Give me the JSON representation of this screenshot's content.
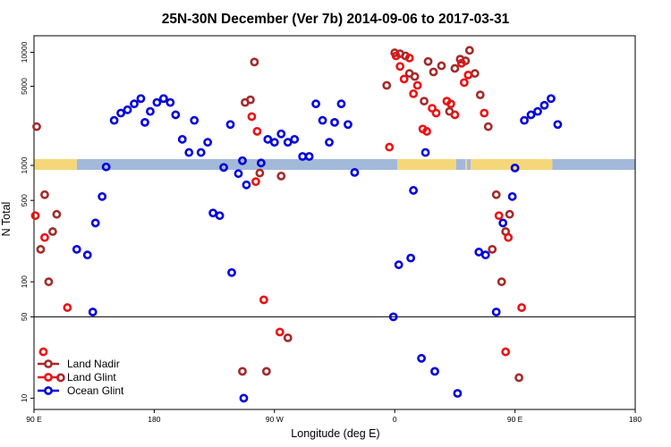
{
  "chart_data": {
    "type": "scatter",
    "title": "25N-30N December (Ver 7b)   2014-09-06 to 2017-03-31",
    "xlabel": "Longitude (deg E)",
    "ylabel": "N Total",
    "x_ticks": [
      {
        "value": 90,
        "label": "90 E"
      },
      {
        "value": 180,
        "label": "180"
      },
      {
        "value": 270,
        "label": "90 W"
      },
      {
        "value": 360,
        "label": "0"
      },
      {
        "value": 450,
        "label": "90 E"
      },
      {
        "value": 540,
        "label": "180"
      }
    ],
    "xlim": [
      90,
      540
    ],
    "y_scale": "log",
    "y_ticks": [
      10,
      50,
      100,
      500,
      1000,
      5000,
      10000
    ],
    "upper_panel": {
      "ylim": [
        1000,
        14000
      ],
      "ticks": [
        1000,
        5000,
        10000
      ]
    },
    "lower_panel": {
      "ylim": [
        8,
        1000
      ],
      "ticks": [
        10,
        50,
        100,
        500,
        1000
      ]
    },
    "reference_line": 50,
    "legend_position": "bottom-left",
    "surface_band_colors": {
      "land": "#f5d77a",
      "ocean": "#a3b9d9"
    },
    "surface_band": [
      {
        "from": 90,
        "to": 122,
        "surface": "land"
      },
      {
        "from": 122,
        "to": 362,
        "surface": "ocean"
      },
      {
        "from": 362,
        "to": 406,
        "surface": "land"
      },
      {
        "from": 406,
        "to": 413,
        "surface": "ocean"
      },
      {
        "from": 413,
        "to": 414,
        "surface": "land"
      },
      {
        "from": 414,
        "to": 417,
        "surface": "ocean"
      },
      {
        "from": 417,
        "to": 478,
        "surface": "land"
      },
      {
        "from": 478,
        "to": 540,
        "surface": "ocean"
      }
    ],
    "series": [
      {
        "name": "Land Nadir",
        "color": "#a52a2a",
        "points": [
          [
            92,
            2200
          ],
          [
            95,
            190
          ],
          [
            98,
            560
          ],
          [
            101,
            100
          ],
          [
            104,
            270
          ],
          [
            107,
            380
          ],
          [
            110,
            15
          ],
          [
            246,
            17
          ],
          [
            248,
            3600
          ],
          [
            252,
            3800
          ],
          [
            255,
            8200
          ],
          [
            259,
            860
          ],
          [
            264,
            17
          ],
          [
            275,
            810
          ],
          [
            280,
            33
          ],
          [
            354,
            5100
          ],
          [
            360,
            9900
          ],
          [
            364,
            9700
          ],
          [
            368,
            9300
          ],
          [
            371,
            6500
          ],
          [
            375,
            6100
          ],
          [
            382,
            3700
          ],
          [
            385,
            8300
          ],
          [
            389,
            6700
          ],
          [
            395,
            7600
          ],
          [
            401,
            3000
          ],
          [
            405,
            7200
          ],
          [
            409,
            8700
          ],
          [
            413,
            8400
          ],
          [
            416,
            10400
          ],
          [
            420,
            6500
          ],
          [
            424,
            4200
          ],
          [
            430,
            2200
          ],
          [
            433,
            190
          ],
          [
            436,
            560
          ],
          [
            440,
            100
          ],
          [
            443,
            270
          ],
          [
            446,
            380
          ],
          [
            453,
            15
          ]
        ]
      },
      {
        "name": "Land Glint",
        "color": "#ee1111",
        "points": [
          [
            91,
            370
          ],
          [
            98,
            240
          ],
          [
            97,
            25
          ],
          [
            115,
            60
          ],
          [
            253,
            2700
          ],
          [
            257,
            2000
          ],
          [
            262,
            70
          ],
          [
            256,
            725
          ],
          [
            274,
            37
          ],
          [
            356,
            1450
          ],
          [
            361,
            9300
          ],
          [
            364,
            7500
          ],
          [
            367,
            5800
          ],
          [
            371,
            8900
          ],
          [
            374,
            4300
          ],
          [
            377,
            5100
          ],
          [
            381,
            2100
          ],
          [
            384,
            2000
          ],
          [
            388,
            3200
          ],
          [
            391,
            2900
          ],
          [
            399,
            3700
          ],
          [
            402,
            3500
          ],
          [
            405,
            2800
          ],
          [
            410,
            8000
          ],
          [
            412,
            5400
          ],
          [
            415,
            6300
          ],
          [
            427,
            2900
          ],
          [
            438,
            370
          ],
          [
            443,
            25
          ],
          [
            445,
            240
          ],
          [
            455,
            60
          ]
        ]
      },
      {
        "name": "Ocean Glint",
        "color": "#0000dd",
        "points": [
          [
            122,
            190
          ],
          [
            130,
            170
          ],
          [
            134,
            55
          ],
          [
            136,
            320
          ],
          [
            141,
            540
          ],
          [
            144,
            970
          ],
          [
            150,
            2500
          ],
          [
            155,
            2900
          ],
          [
            160,
            3100
          ],
          [
            165,
            3500
          ],
          [
            170,
            3900
          ],
          [
            173,
            2400
          ],
          [
            177,
            3000
          ],
          [
            182,
            3600
          ],
          [
            187,
            3900
          ],
          [
            192,
            3600
          ],
          [
            196,
            2800
          ],
          [
            201,
            1700
          ],
          [
            206,
            1300
          ],
          [
            210,
            2500
          ],
          [
            215,
            1300
          ],
          [
            220,
            1600
          ],
          [
            224,
            390
          ],
          [
            229,
            370
          ],
          [
            232,
            960
          ],
          [
            237,
            2300
          ],
          [
            238,
            120
          ],
          [
            243,
            850
          ],
          [
            246,
            1100
          ],
          [
            247,
            10
          ],
          [
            249,
            680
          ],
          [
            260,
            1050
          ],
          [
            265,
            1700
          ],
          [
            270,
            1600
          ],
          [
            275,
            1900
          ],
          [
            280,
            1600
          ],
          [
            285,
            1700
          ],
          [
            291,
            1200
          ],
          [
            296,
            1200
          ],
          [
            301,
            3500
          ],
          [
            306,
            2500
          ],
          [
            311,
            1600
          ],
          [
            315,
            2400
          ],
          [
            320,
            3500
          ],
          [
            325,
            2300
          ],
          [
            330,
            870
          ],
          [
            359,
            50
          ],
          [
            363,
            140
          ],
          [
            372,
            160
          ],
          [
            374,
            610
          ],
          [
            380,
            22
          ],
          [
            383,
            1300
          ],
          [
            390,
            17
          ],
          [
            407,
            11
          ],
          [
            423,
            180
          ],
          [
            428,
            170
          ],
          [
            436,
            55
          ],
          [
            441,
            320
          ],
          [
            448,
            540
          ],
          [
            450,
            950
          ],
          [
            457,
            2500
          ],
          [
            462,
            2800
          ],
          [
            467,
            3000
          ],
          [
            472,
            3400
          ],
          [
            477,
            3900
          ],
          [
            482,
            2300
          ]
        ]
      }
    ]
  }
}
